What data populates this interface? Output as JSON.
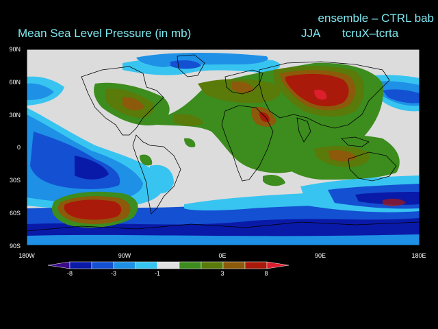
{
  "header": {
    "title": "Mean Sea Level Pressure (in mb)",
    "ensemble": "ensemble – CTRL bab",
    "season": "JJA",
    "experiment": "tcruX–tcrta"
  },
  "axes": {
    "lat_labels": [
      "90N",
      "60N",
      "30N",
      "0",
      "30S",
      "60S",
      "90S"
    ],
    "lon_labels": [
      "180W",
      "90W",
      "0E",
      "90E",
      "180E"
    ]
  },
  "colorbar": {
    "labels": [
      "-8",
      "-3",
      "-1",
      "3",
      "8"
    ],
    "colors": [
      "#3a0a8a",
      "#0a1aa8",
      "#1450d2",
      "#1e90e6",
      "#38c4f0",
      "#e0e0e0",
      "#3c8c1e",
      "#5a7a0a",
      "#8c5a0a",
      "#aa1a0a",
      "#dc1e2d"
    ]
  },
  "colors": {
    "title": "#7fe8f0",
    "land_outline": "#000000",
    "neutral": "#dcdcdc"
  }
}
